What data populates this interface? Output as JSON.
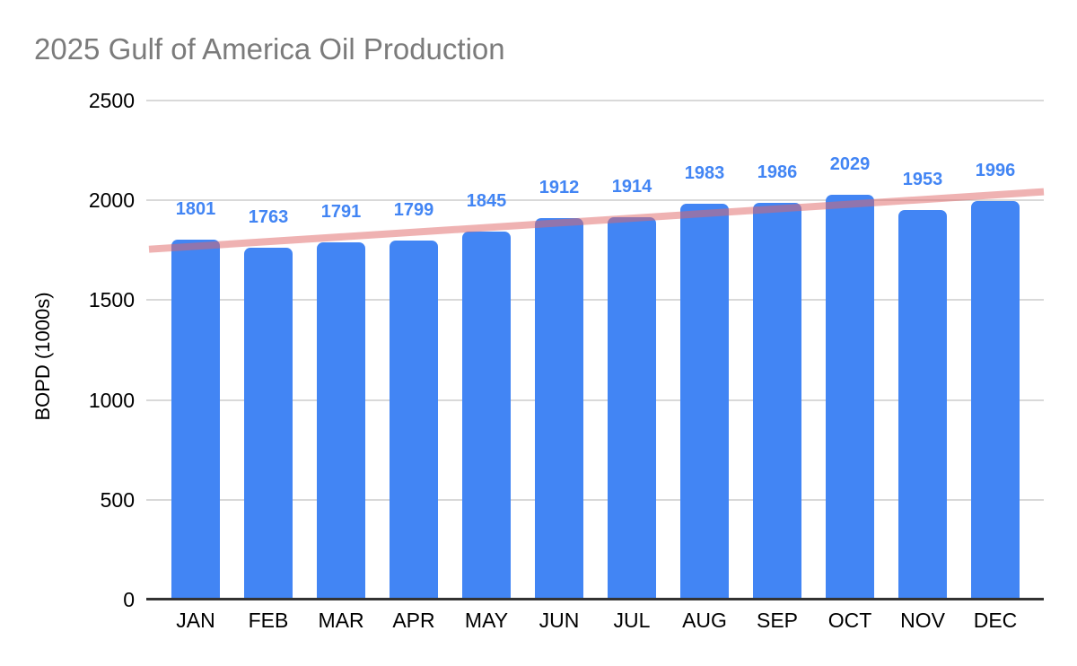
{
  "title": "2025 Gulf of America Oil Production",
  "chart_data": {
    "type": "bar",
    "title": "2025 Gulf of America Oil Production",
    "categories": [
      "JAN",
      "FEB",
      "MAR",
      "APR",
      "MAY",
      "JUN",
      "JUL",
      "AUG",
      "SEP",
      "OCT",
      "NOV",
      "DEC"
    ],
    "values": [
      1801,
      1763,
      1791,
      1799,
      1845,
      1912,
      1914,
      1983,
      1986,
      2029,
      1953,
      1996
    ],
    "xlabel": "",
    "ylabel": "BOPD (1000s)",
    "ylim": [
      0,
      2500
    ],
    "yticks": [
      0,
      500,
      1000,
      1500,
      2000,
      2500
    ],
    "grid": true,
    "legend_position": "none",
    "data_labels_shown": true,
    "trendline": {
      "type": "linear",
      "start_value": 1755,
      "end_value": 2043
    },
    "colors": {
      "bar": "#4285F4",
      "data_label": "#4285F4",
      "trendline": "#E06666",
      "trendline_opacity": 0.5,
      "gridline": "#d9d9d9",
      "axis_line": "#333333",
      "title_text": "#7b7b7b",
      "tick_text": "#000000",
      "background": "#ffffff"
    }
  }
}
